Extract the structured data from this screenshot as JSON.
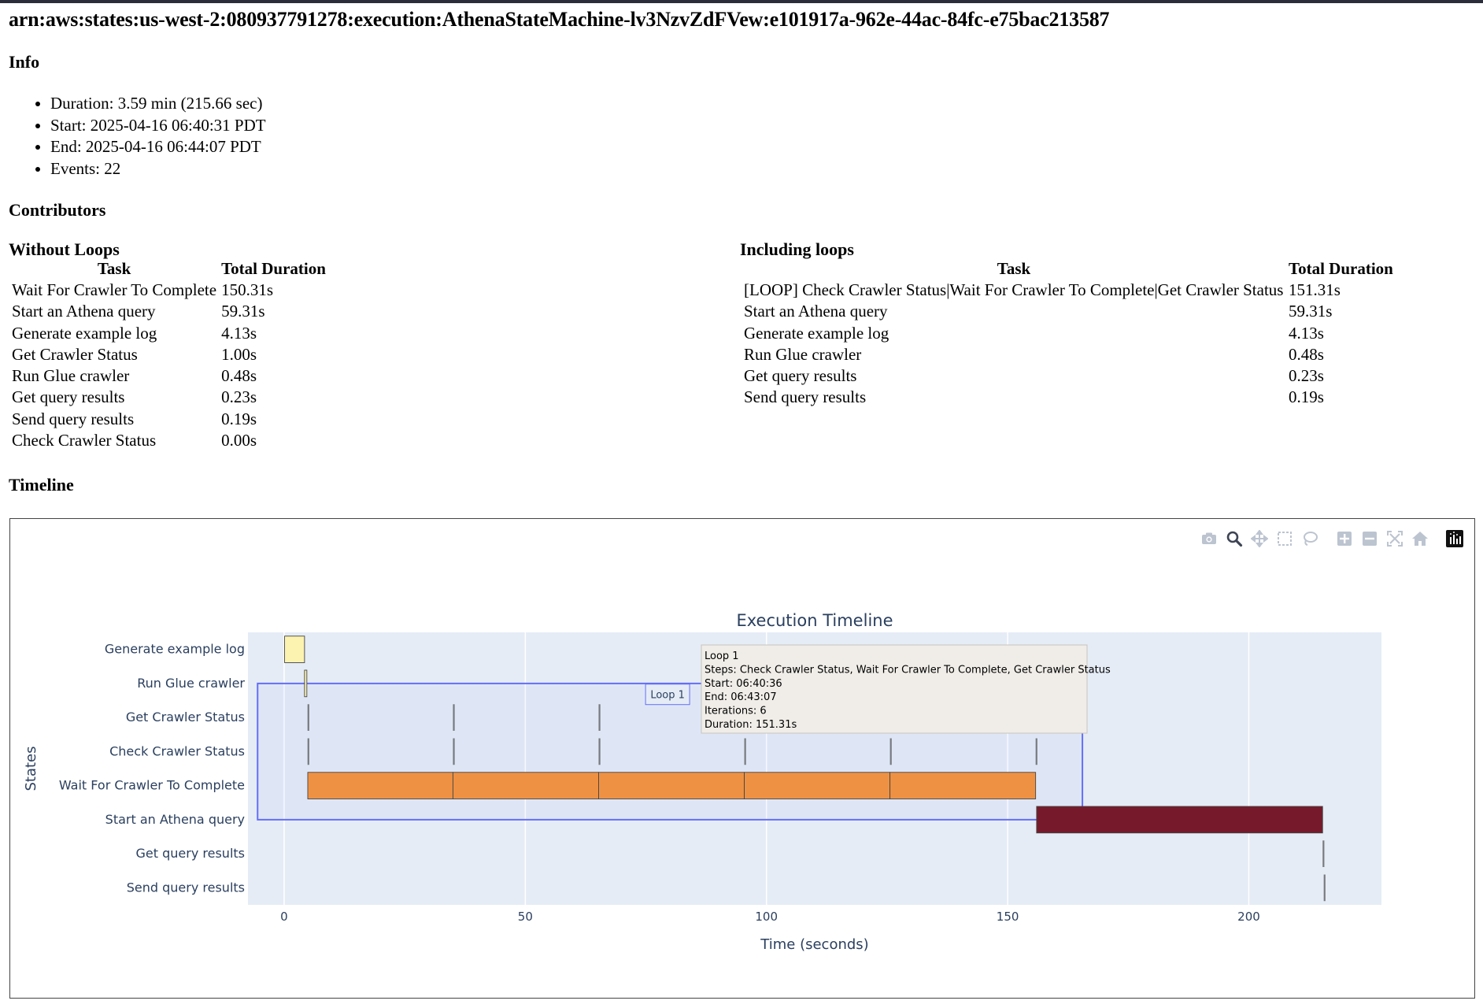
{
  "header": {
    "title": "arn:aws:states:us-west-2:080937791278:execution:AthenaStateMachine-lv3NzvZdFVew:e101917a-962e-44ac-84fc-e75bac213587"
  },
  "info": {
    "heading": "Info",
    "items": [
      "Duration: 3.59 min (215.66 sec)",
      "Start: 2025-04-16 06:40:31 PDT",
      "End: 2025-04-16 06:44:07 PDT",
      "Events: 22"
    ]
  },
  "contributors": {
    "heading": "Contributors",
    "without_loops": {
      "heading": "Without Loops",
      "columns": [
        "Task",
        "Total Duration"
      ],
      "rows": [
        [
          "Wait For Crawler To Complete",
          "150.31s"
        ],
        [
          "Start an Athena query",
          "59.31s"
        ],
        [
          "Generate example log",
          "4.13s"
        ],
        [
          "Get Crawler Status",
          "1.00s"
        ],
        [
          "Run Glue crawler",
          "0.48s"
        ],
        [
          "Get query results",
          "0.23s"
        ],
        [
          "Send query results",
          "0.19s"
        ],
        [
          "Check Crawler Status",
          "0.00s"
        ]
      ]
    },
    "including_loops": {
      "heading": "Including loops",
      "columns": [
        "Task",
        "Total Duration"
      ],
      "rows": [
        [
          "[LOOP] Check Crawler Status|Wait For Crawler To Complete|Get Crawler Status",
          "151.31s"
        ],
        [
          "Start an Athena query",
          "59.31s"
        ],
        [
          "Generate example log",
          "4.13s"
        ],
        [
          "Run Glue crawler",
          "0.48s"
        ],
        [
          "Get query results",
          "0.23s"
        ],
        [
          "Send query results",
          "0.19s"
        ]
      ]
    }
  },
  "timeline": {
    "heading": "Timeline",
    "modebar": [
      "camera-icon",
      "zoom-icon",
      "pan-icon",
      "box-select-icon",
      "lasso-icon",
      "zoom-in-icon",
      "zoom-out-icon",
      "autoscale-icon",
      "reset-axes-icon",
      "plotly-logo-icon"
    ]
  },
  "chart_data": {
    "type": "gantt",
    "title": "Execution Timeline",
    "xlabel": "Time (seconds)",
    "ylabel": "States",
    "xlim": [
      -7.5,
      227.5
    ],
    "xticks": [
      0,
      50,
      100,
      150,
      200
    ],
    "grid": true,
    "categories": [
      "Generate example log",
      "Run Glue crawler",
      "Get Crawler Status",
      "Check Crawler Status",
      "Wait For Crawler To Complete",
      "Start an Athena query",
      "Get query results",
      "Send query results"
    ],
    "series": [
      {
        "task": "Generate example log",
        "color": "#fdf3b0",
        "segments": [
          [
            0.1,
            4.23
          ]
        ]
      },
      {
        "task": "Run Glue crawler",
        "color": "#fdf3b0",
        "segments": [
          [
            4.23,
            4.71
          ]
        ]
      },
      {
        "task": "Get Crawler Status",
        "color": "#555555",
        "segments": [
          [
            4.85,
            4.85
          ],
          [
            35.0,
            35.0
          ],
          [
            65.2,
            65.2
          ]
        ]
      },
      {
        "task": "Check Crawler Status",
        "color": "#555555",
        "segments": [
          [
            4.85,
            4.85
          ],
          [
            35.0,
            35.0
          ],
          [
            65.2,
            65.2
          ],
          [
            95.4,
            95.4
          ],
          [
            125.6,
            125.6
          ],
          [
            155.8,
            155.8
          ]
        ]
      },
      {
        "task": "Wait For Crawler To Complete",
        "color": "#ef9143",
        "segments": [
          [
            4.9,
            35.0
          ],
          [
            35.0,
            65.2
          ],
          [
            65.2,
            95.4
          ],
          [
            95.4,
            125.6
          ],
          [
            125.6,
            155.8
          ]
        ]
      },
      {
        "task": "Start an Athena query",
        "color": "#761a2b",
        "segments": [
          [
            156.0,
            215.3
          ]
        ]
      },
      {
        "task": "Get query results",
        "color": "#555555",
        "segments": [
          [
            215.3,
            215.53
          ]
        ]
      },
      {
        "task": "Send query results",
        "color": "#555555",
        "segments": [
          [
            215.53,
            215.72
          ]
        ]
      }
    ],
    "loop_region": {
      "label": "Loop 1",
      "x_start": -5.5,
      "x_end": 165.5,
      "from_category": "Run Glue crawler",
      "to_category": "Start an Athena query",
      "color": "#636efa"
    },
    "tooltip": {
      "lines": [
        "Loop 1",
        "Steps: Check Crawler Status, Wait For Crawler To Complete, Get Crawler Status",
        "Start: 06:40:36",
        "End: 06:43:07",
        "Iterations: 6",
        "Duration: 151.31s"
      ]
    }
  }
}
